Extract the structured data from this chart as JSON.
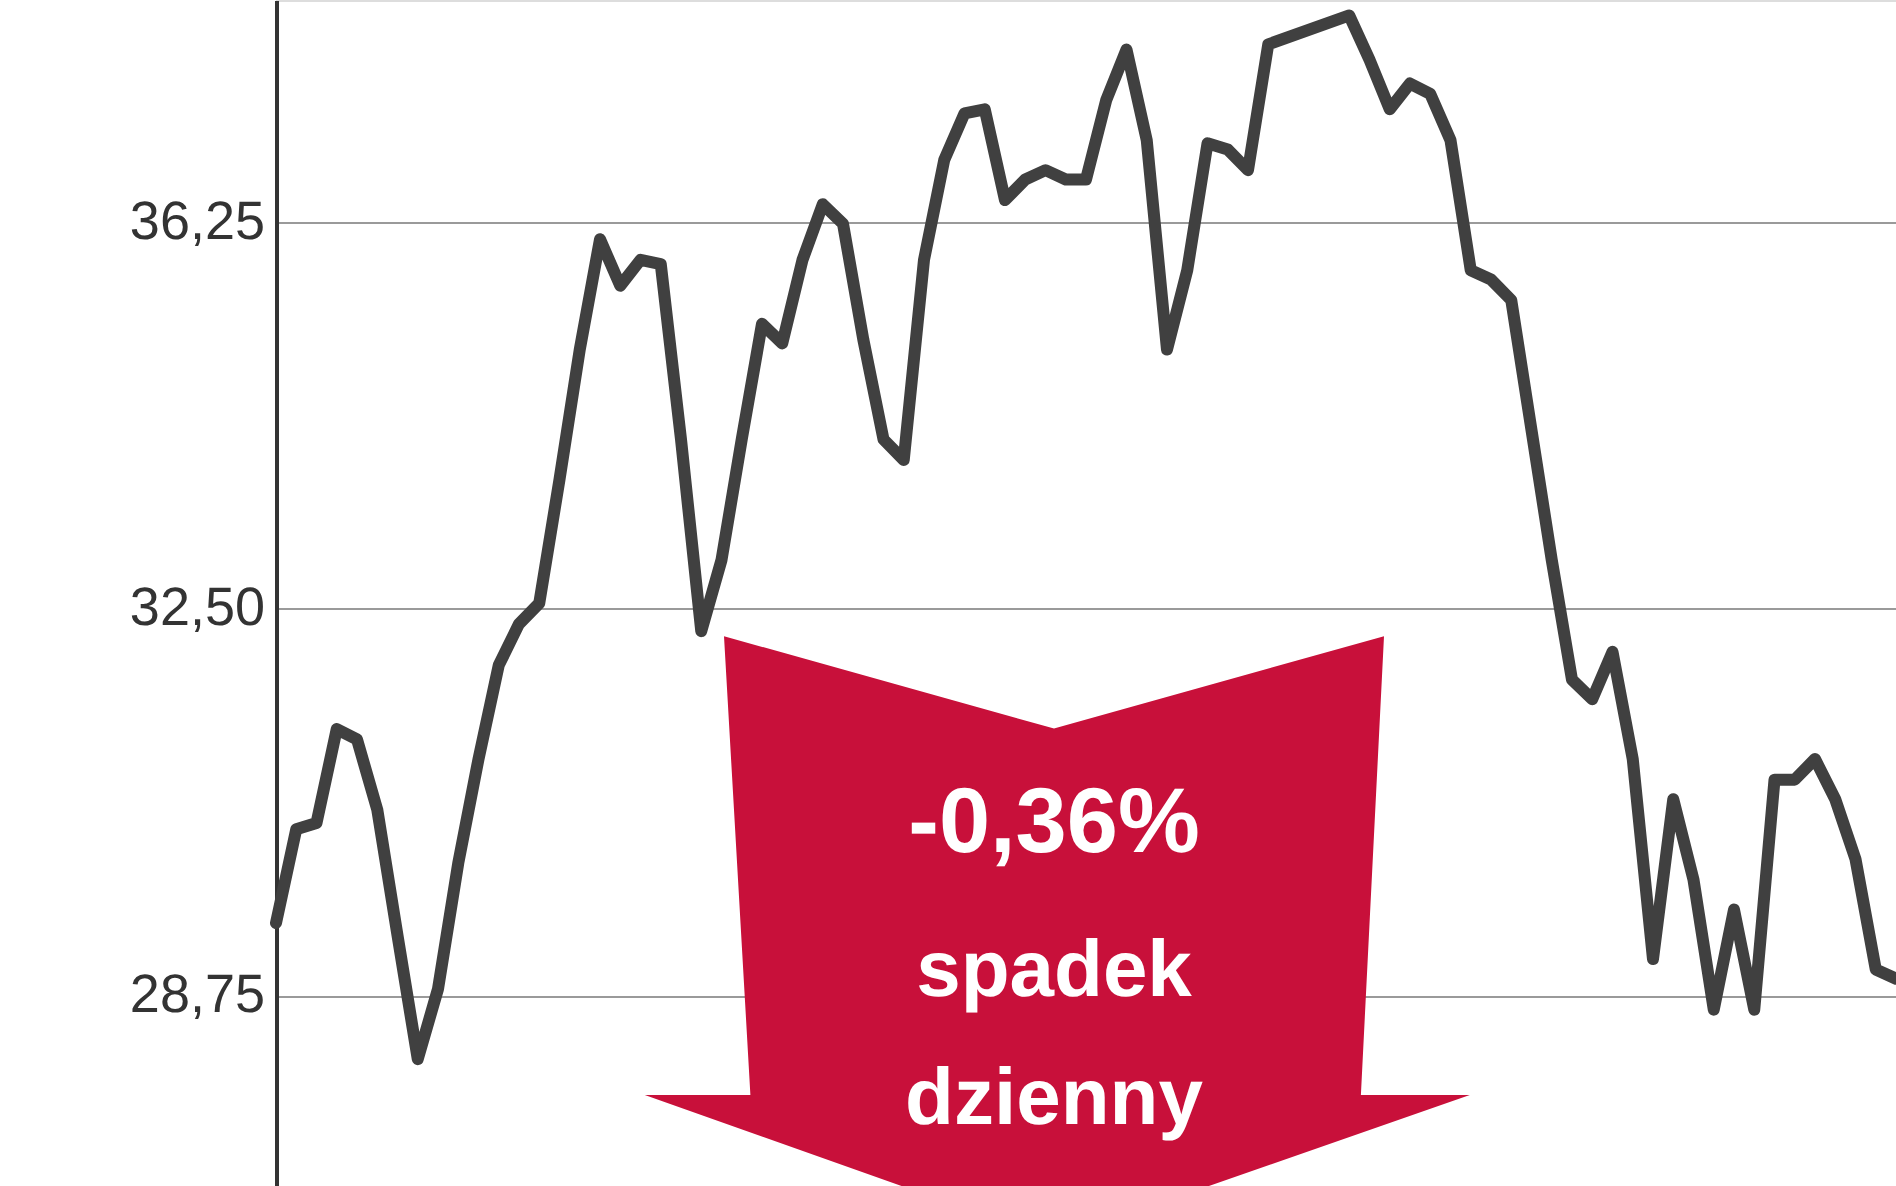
{
  "chart_data": {
    "type": "line",
    "categories": [
      null,
      null,
      null,
      null,
      null,
      null,
      null,
      null,
      null,
      null,
      null,
      null,
      null,
      null,
      null,
      null,
      null,
      null,
      null,
      null,
      null,
      null,
      null,
      null,
      null,
      null,
      null,
      null,
      null,
      null,
      null,
      null,
      null,
      null,
      null,
      null,
      null,
      null,
      null,
      null,
      null,
      null,
      null,
      null,
      null,
      null,
      null,
      null,
      null,
      null,
      null,
      null,
      null,
      null,
      null,
      null,
      null,
      null,
      null,
      null,
      null,
      null,
      null,
      null,
      null,
      null,
      null,
      null,
      null,
      null,
      null,
      null,
      null,
      null,
      null,
      null,
      null,
      null,
      null,
      null,
      null
    ],
    "series": [
      {
        "color": "#404040",
        "values": [
          29.45,
          30.36,
          30.42,
          31.33,
          31.23,
          30.55,
          29.33,
          28.13,
          28.81,
          30.03,
          31.04,
          31.95,
          32.35,
          32.55,
          33.75,
          35.01,
          36.08,
          35.63,
          35.88,
          35.84,
          34.14,
          32.28,
          32.97,
          34.14,
          35.26,
          35.07,
          35.88,
          36.42,
          36.23,
          35.11,
          34.14,
          33.94,
          35.88,
          36.85,
          37.3,
          37.34,
          36.46,
          36.66,
          36.75,
          36.66,
          36.66,
          37.43,
          37.92,
          37.04,
          35.01,
          35.78,
          37.01,
          36.95,
          36.75,
          37.97,
          null,
          null,
          null,
          38.25,
          37.82,
          37.34,
          37.59,
          37.49,
          37.04,
          35.78,
          35.69,
          35.49,
          34.23,
          32.97,
          31.81,
          31.62,
          32.08,
          31.04,
          29.1,
          30.65,
          29.87,
          28.61,
          29.58,
          28.61,
          30.84,
          30.84,
          31.04,
          30.65,
          30.07,
          29.0,
          28.91
        ]
      }
    ],
    "ylim": [
      26.9,
      38.4
    ],
    "yticks": [
      {
        "value": 28.75,
        "label": "28,75"
      },
      {
        "value": 32.5,
        "label": "32,50"
      },
      {
        "value": 36.25,
        "label": "36,25"
      }
    ],
    "grid": "y",
    "marker": "none",
    "line_style": "solid",
    "tick_labels": "y",
    "annotations": [
      "-0,36%",
      "spadek",
      "dzienny"
    ]
  }
}
